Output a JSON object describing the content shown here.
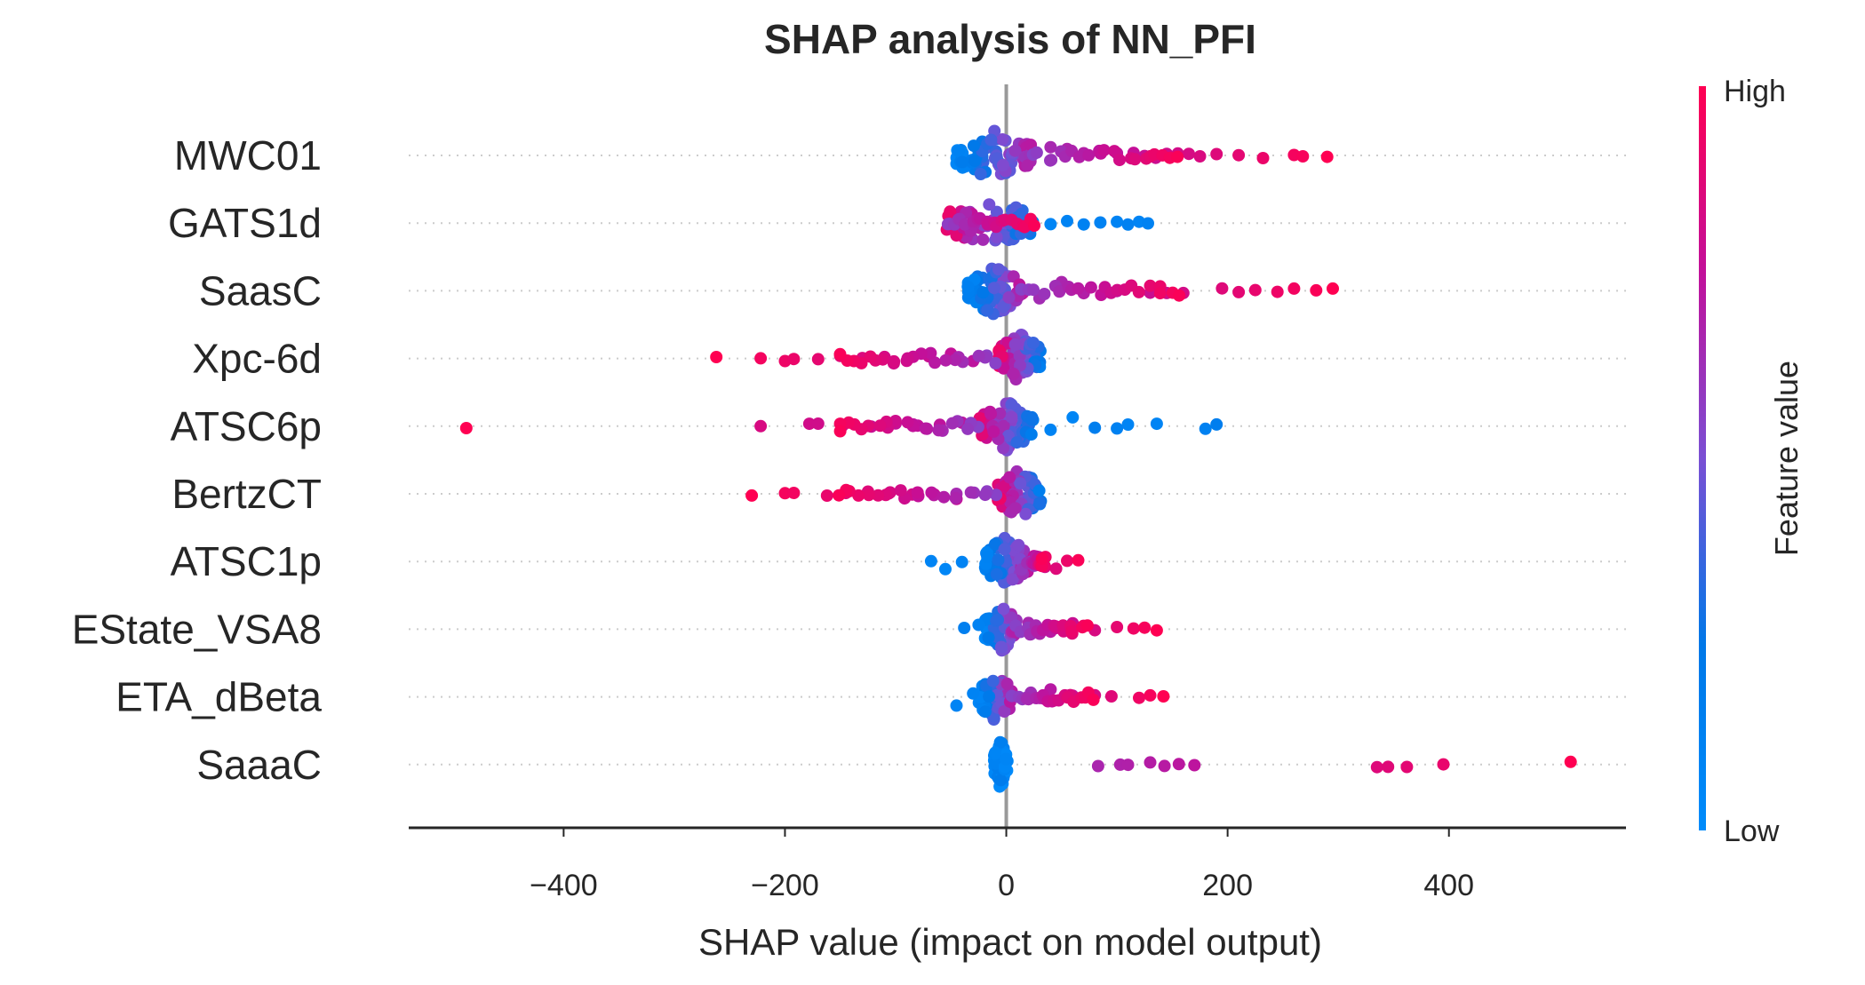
{
  "chart_data": {
    "type": "scatter",
    "title": "SHAP analysis of NN_PFI",
    "xlabel": "SHAP value (impact on model output)",
    "xlim": [
      -540,
      560
    ],
    "xticks": [
      -400,
      -200,
      0,
      200,
      400
    ],
    "xtick_labels": [
      "−400",
      "−200",
      "0",
      "200",
      "400"
    ],
    "colorbar": {
      "label": "Feature value",
      "high": "High",
      "low": "Low",
      "high_color": "#ff0052",
      "low_color": "#008bfb"
    },
    "grid": "dotted horizontal feature lines",
    "features": [
      {
        "name": "MWC01",
        "core_center": -10,
        "core_halfwidth": 35,
        "core_color_trend": "low-to-high",
        "tail_points": [
          40,
          55,
          70,
          85,
          100,
          115,
          125,
          135,
          145,
          155,
          165,
          175,
          190,
          210,
          232,
          260,
          268,
          290
        ]
      },
      {
        "name": "GATS1d",
        "core_center": -15,
        "core_halfwidth": 40,
        "core_color_trend": "high-to-low",
        "tail_points": [
          40,
          55,
          70,
          85,
          100,
          110,
          120,
          128
        ]
      },
      {
        "name": "SaasC",
        "core_center": -10,
        "core_halfwidth": 25,
        "core_color_trend": "low-to-high",
        "tail_points": [
          30,
          50,
          70,
          90,
          100,
          130,
          145,
          160,
          195,
          210,
          225,
          245,
          260,
          280,
          295
        ]
      },
      {
        "name": "Xpc-6d",
        "core_center": 12,
        "core_halfwidth": 20,
        "core_color_trend": "high-to-low",
        "tail_points": [
          -262,
          -222,
          -200,
          -192,
          -170,
          -150,
          -130,
          -110,
          -90,
          -70,
          -50,
          -30
        ]
      },
      {
        "name": "ATSC6p",
        "core_center": 0,
        "core_halfwidth": 25,
        "core_color_trend": "high-to-low",
        "tail_points": [
          -488,
          -222,
          -178,
          -170,
          -148,
          -122,
          -100,
          -80,
          -60,
          -40,
          40,
          60,
          80,
          100,
          110,
          136,
          180,
          190
        ]
      },
      {
        "name": "BertzCT",
        "core_center": 12,
        "core_halfwidth": 20,
        "core_color_trend": "high-to-low",
        "tail_points": [
          -230,
          -200,
          -192,
          -162,
          -145,
          -125,
          -105,
          -85,
          -65,
          -45
        ]
      },
      {
        "name": "ATSC1p",
        "core_center": 0,
        "core_halfwidth": 20,
        "core_color_trend": "low-to-high",
        "tail_points": [
          -68,
          -55,
          -40,
          25,
          35,
          45,
          55,
          65
        ]
      },
      {
        "name": "EState_VSA8",
        "core_center": -5,
        "core_halfwidth": 15,
        "core_color_trend": "low-to-high",
        "tail_points": [
          -38,
          -25,
          20,
          40,
          60,
          80,
          100,
          115,
          125,
          136
        ]
      },
      {
        "name": "ETA_dBeta",
        "core_center": -10,
        "core_halfwidth": 15,
        "core_color_trend": "low-to-high",
        "tail_points": [
          -45,
          -30,
          20,
          40,
          60,
          80,
          95,
          120,
          130,
          142
        ]
      },
      {
        "name": "SaaaC",
        "core_center": -5,
        "core_halfwidth": 6,
        "core_color_trend": "low",
        "tail_points": [
          83,
          103,
          110,
          130,
          143,
          156,
          170,
          335,
          345,
          362,
          395,
          510
        ]
      }
    ]
  }
}
